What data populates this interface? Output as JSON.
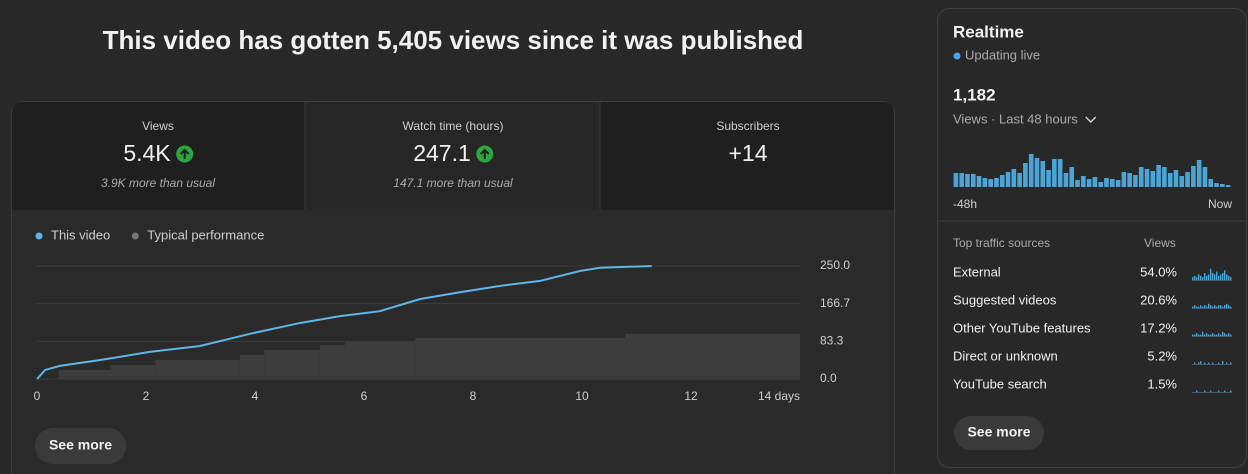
{
  "header": {
    "title": "This video has gotten 5,405 views since it was published"
  },
  "metrics": [
    {
      "label": "Views",
      "value": "5.4K",
      "up": true,
      "note": "3.9K more than usual"
    },
    {
      "label": "Watch time (hours)",
      "value": "247.1",
      "up": true,
      "note": "147.1 more than usual"
    },
    {
      "label": "Subscribers",
      "value": "+14",
      "up": false
    }
  ],
  "chart_data": [
    {
      "type": "line",
      "series": [
        {
          "name": "This video",
          "color": "#5db5e8",
          "kind": "line",
          "x": [
            0,
            0.15,
            0.42,
            1.16,
            2.07,
            2.99,
            3.91,
            4.83,
            5.56,
            6.29,
            7.03,
            7.76,
            8.5,
            9.23,
            9.96,
            10.33,
            11.28
          ],
          "values": [
            0,
            20,
            29,
            42,
            60,
            73,
            100,
            124,
            139,
            150,
            177,
            192,
            206,
            217,
            239,
            246,
            250
          ]
        },
        {
          "name": "Typical performance",
          "color": "#3d3d3d",
          "kind": "step-area",
          "x": [
            0,
            0.4,
            1.35,
            2.17,
            3.72,
            4.17,
            5.19,
            5.65,
            6.94,
            10.79
          ],
          "values": [
            0,
            20,
            31,
            42,
            53,
            64,
            75,
            82,
            91,
            100
          ]
        }
      ],
      "xlim": [
        0,
        14
      ],
      "xticks": [
        0,
        2,
        4,
        6,
        8,
        10,
        12,
        {
          "value": 14,
          "label": "14 days"
        }
      ],
      "ylim": [
        0,
        250
      ],
      "yticks": [
        {
          "value": 0,
          "label": "0.0"
        },
        {
          "value": 83.3,
          "label": "83.3"
        },
        {
          "value": 166.7,
          "label": "166.7"
        },
        {
          "value": 250,
          "label": "250.0"
        }
      ],
      "grid": true
    },
    {
      "type": "bar",
      "color": "#4ba6d8",
      "categories": [
        "-48h",
        null,
        null,
        null,
        null,
        null,
        null,
        null,
        null,
        null,
        null,
        null,
        null,
        null,
        null,
        null,
        null,
        null,
        null,
        null,
        null,
        null,
        null,
        null,
        null,
        null,
        null,
        null,
        null,
        null,
        null,
        null,
        null,
        null,
        null,
        null,
        null,
        null,
        null,
        null,
        null,
        null,
        null,
        null,
        null,
        null,
        null,
        "Now"
      ],
      "values": [
        28,
        28,
        26,
        26,
        22,
        18,
        16,
        18,
        24,
        30,
        36,
        28,
        48,
        66,
        58,
        52,
        34,
        56,
        56,
        28,
        40,
        14,
        22,
        16,
        20,
        10,
        18,
        16,
        14,
        30,
        28,
        24,
        40,
        36,
        32,
        44,
        40,
        28,
        34,
        22,
        30,
        42,
        54,
        40,
        16,
        8,
        6,
        4
      ],
      "ylim": [
        0,
        70
      ]
    }
  ],
  "main_button": "See more",
  "realtime": {
    "title": "Realtime",
    "status": "Updating live",
    "total": "1,182",
    "metric": "Views · Last 48 hours",
    "traffic": {
      "title": "Top traffic sources",
      "column": "Views",
      "spark_color": "#4ba6d8",
      "spark_ylim": [
        0,
        10
      ],
      "rows": [
        {
          "name": "External",
          "share": "54.0%",
          "spark": [
            2,
            3,
            2,
            4,
            3,
            2,
            5,
            3,
            4,
            8,
            5,
            4,
            6,
            3,
            4,
            5,
            7,
            4,
            3,
            2
          ]
        },
        {
          "name": "Suggested videos",
          "share": "20.6%",
          "spark": [
            1,
            2,
            1,
            1,
            2,
            1,
            2,
            1,
            3,
            2,
            1,
            2,
            1,
            2,
            2,
            1,
            2,
            3,
            2,
            1
          ]
        },
        {
          "name": "Other YouTube features",
          "share": "17.2%",
          "spark": [
            1,
            1,
            2,
            1,
            1,
            3,
            1,
            2,
            1,
            1,
            2,
            1,
            1,
            2,
            1,
            3,
            2,
            1,
            2,
            1
          ]
        },
        {
          "name": "Direct or unknown",
          "share": "5.2%",
          "spark": [
            0,
            1,
            0,
            1,
            2,
            0,
            1,
            0,
            1,
            0,
            1,
            0,
            0,
            1,
            0,
            2,
            0,
            1,
            0,
            1
          ]
        },
        {
          "name": "YouTube search",
          "share": "1.5%",
          "spark": [
            0,
            0,
            1,
            0,
            0,
            0,
            1,
            0,
            0,
            1,
            0,
            0,
            0,
            1,
            0,
            0,
            1,
            0,
            0,
            1
          ]
        }
      ]
    },
    "button": "See more"
  }
}
